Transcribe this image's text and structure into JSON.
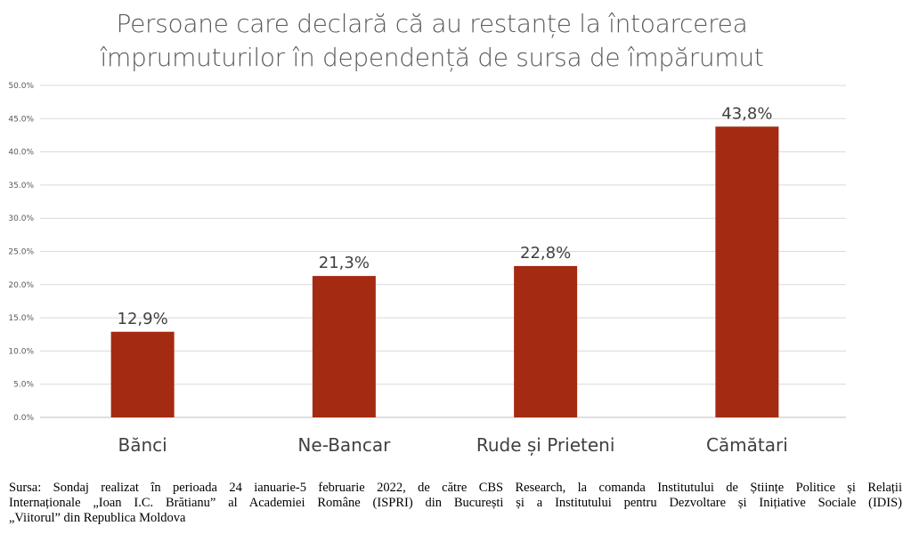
{
  "chart_data": {
    "type": "bar",
    "title_line1": "Persoane care declară că au restanțe la întoarcerea",
    "title_line2": "împrumuturilor în dependență de sursa de împărumut",
    "categories": [
      "Bănci",
      "Ne-Bancar",
      "Rude și Prieteni",
      "Cămătari"
    ],
    "values": [
      12.9,
      21.3,
      22.8,
      43.8
    ],
    "value_labels": [
      "12,9%",
      "21,3%",
      "22,8%",
      "43,8%"
    ],
    "yticks": [
      "0.0%",
      "5.0%",
      "10.0%",
      "15.0%",
      "20.0%",
      "25.0%",
      "30.0%",
      "35.0%",
      "40.0%",
      "45.0%",
      "50.0%"
    ],
    "ylim": [
      0,
      50
    ],
    "grid": true,
    "bar_color": "#a52a12"
  },
  "source": {
    "line1": "Sursa: Sondaj realizat în perioada 24 ianuarie-5 februarie 2022, de către CBS Research, la comanda Institutului de Științe Politice și Relații",
    "line2": "Internaționale „Ioan I.C. Brătianu” al Academiei Române (ISPRI) din București și a Institutului pentru Dezvoltare și Inițiative Sociale (IDIS)",
    "line3": "„Viitorul” din Republica Moldova"
  }
}
